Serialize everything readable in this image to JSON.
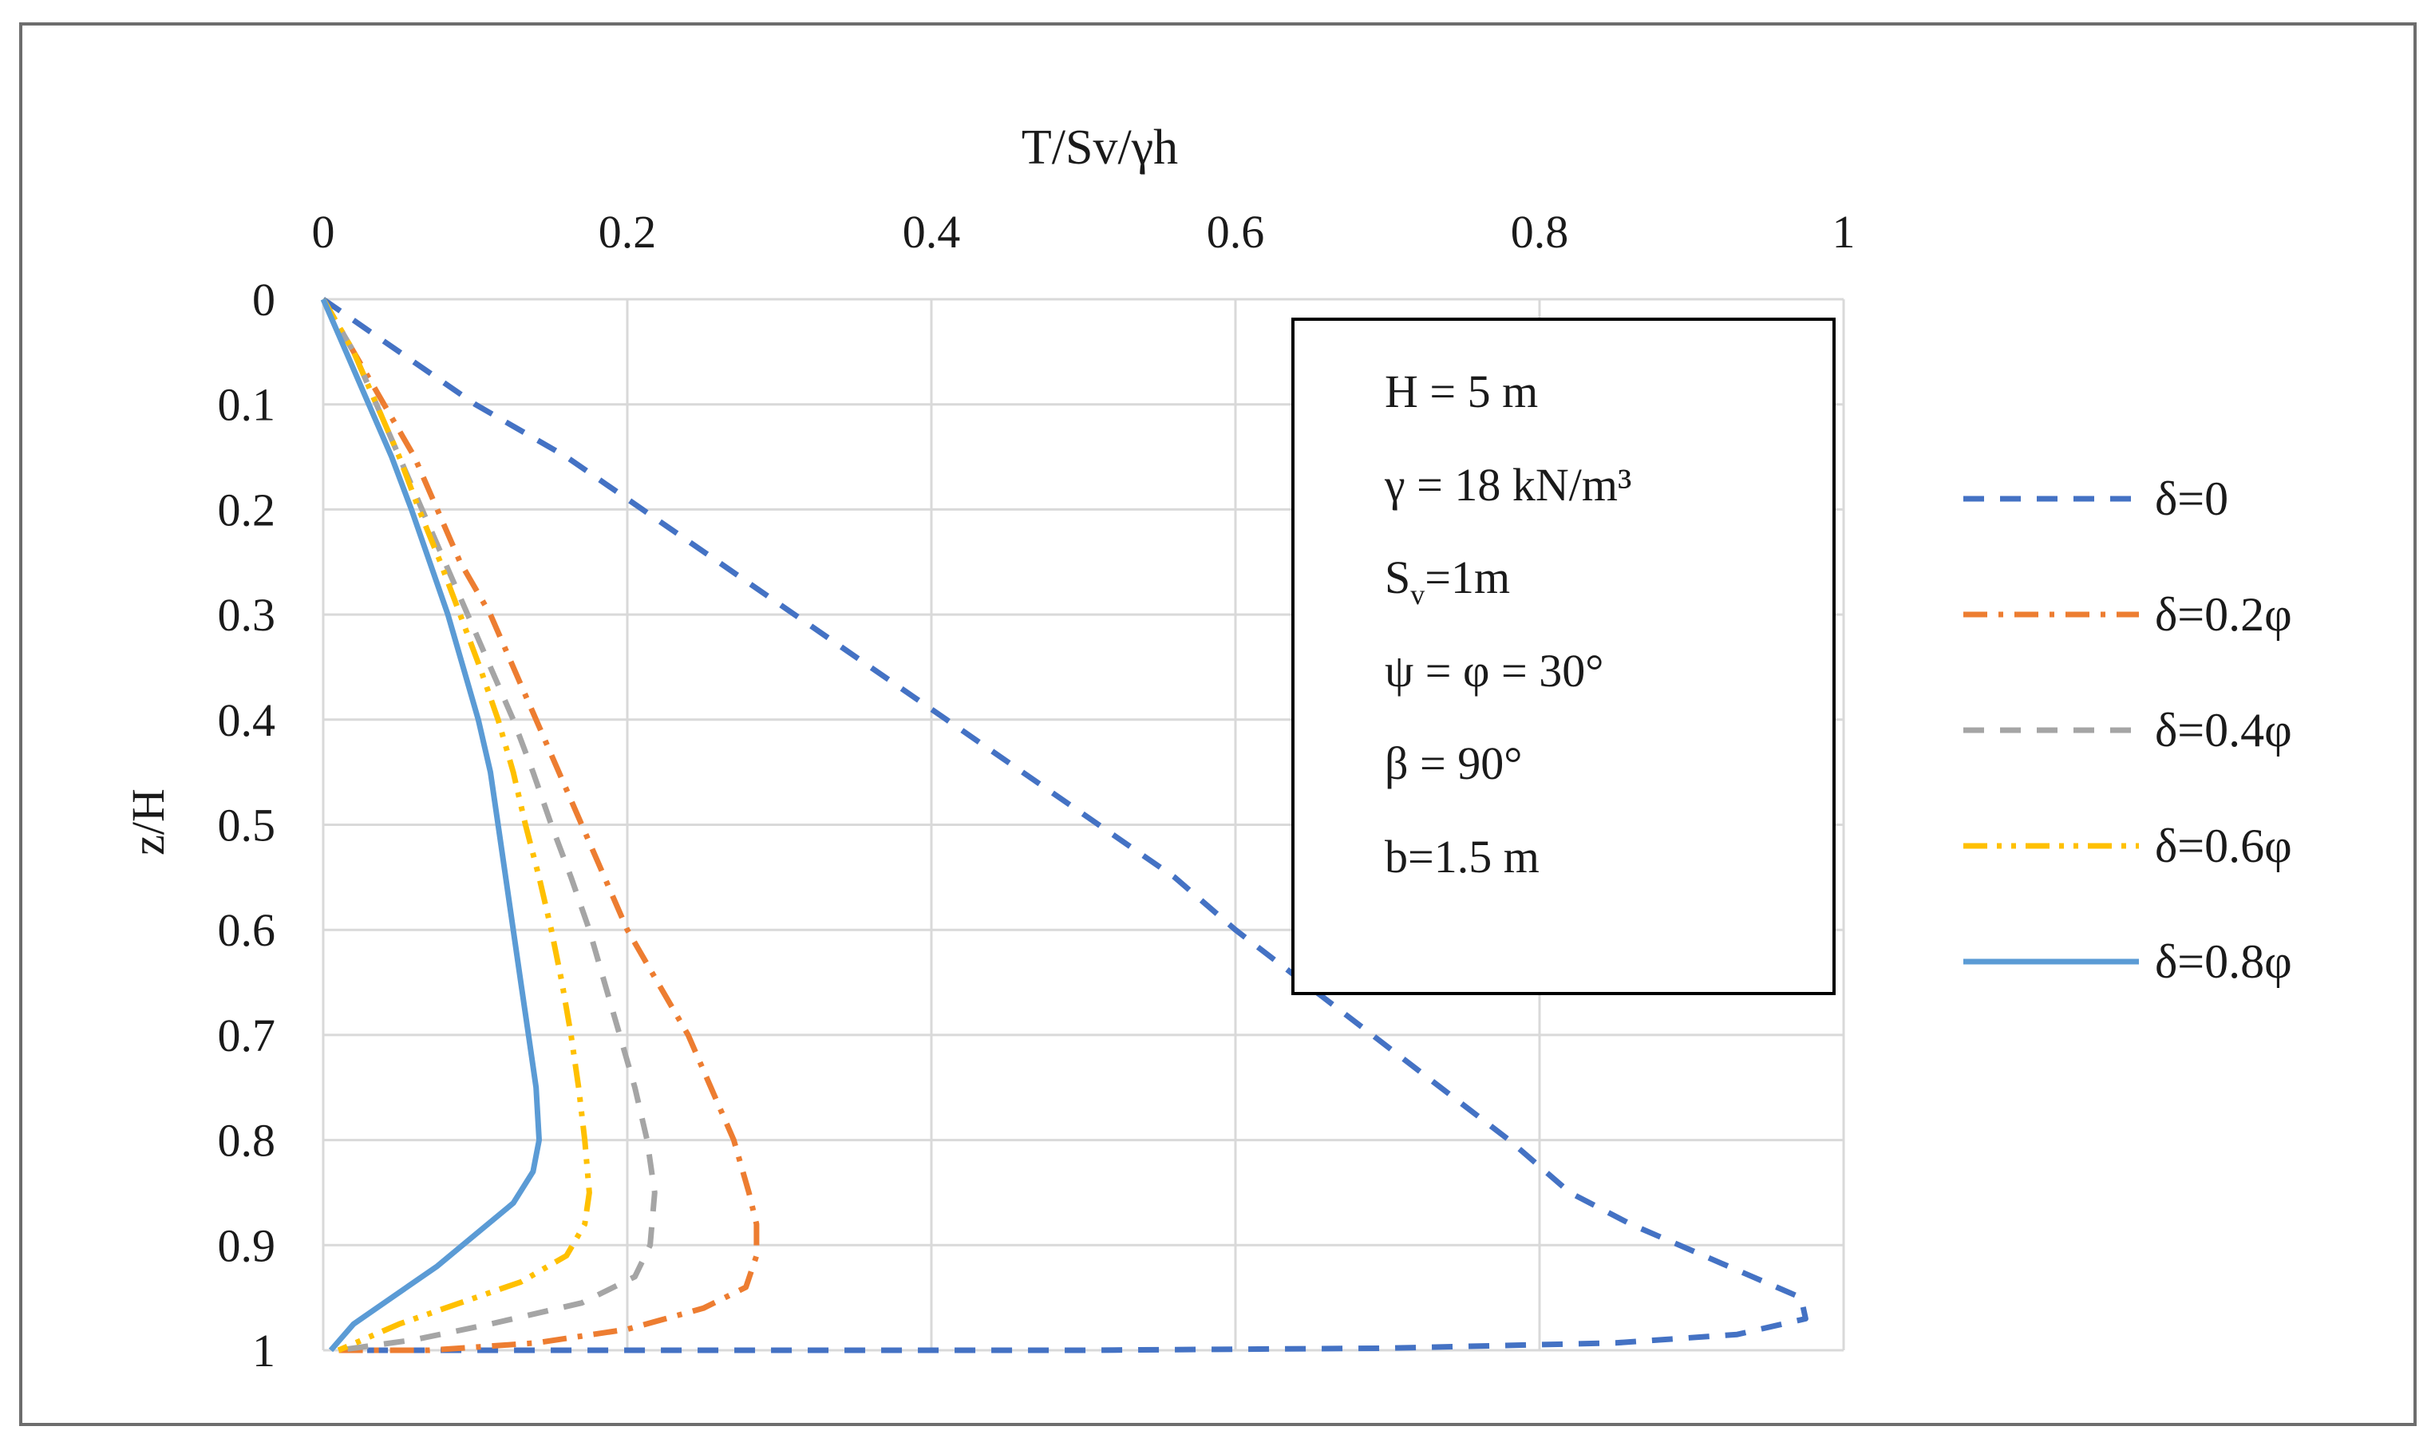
{
  "chart_data": {
    "type": "line",
    "title": "",
    "xlabel": "T/Sv/γh",
    "ylabel": "z/H",
    "xlim": [
      0,
      1
    ],
    "ylim": [
      0,
      1
    ],
    "x_axis_position": "top",
    "y_axis_inverted": true,
    "grid": true,
    "x_ticks": [
      "0",
      "0.2",
      "0.4",
      "0.6",
      "0.8",
      "1"
    ],
    "y_ticks": [
      "0",
      "0.1",
      "0.2",
      "0.3",
      "0.4",
      "0.5",
      "0.6",
      "0.7",
      "0.8",
      "0.9",
      "1"
    ],
    "legend_position": "right",
    "annotation_box": {
      "line1": "H = 5 m",
      "line2": "γ = 18 kN/m³",
      "line3_main": "S",
      "line3_sub": "v",
      "line3_rest": "=1m",
      "line4": "ψ = φ  = 30°",
      "line5": "β = 90°",
      "line6": "b=1.5 m"
    },
    "series": [
      {
        "name": "δ=0",
        "color": "#4472C4",
        "dash": "dash",
        "points": [
          [
            0,
            0
          ],
          [
            0.05,
            0.05
          ],
          [
            0.1,
            0.1
          ],
          [
            0.16,
            0.15
          ],
          [
            0.21,
            0.2
          ],
          [
            0.26,
            0.25
          ],
          [
            0.31,
            0.3
          ],
          [
            0.36,
            0.35
          ],
          [
            0.41,
            0.4
          ],
          [
            0.46,
            0.45
          ],
          [
            0.51,
            0.5
          ],
          [
            0.56,
            0.55
          ],
          [
            0.6,
            0.6
          ],
          [
            0.645,
            0.65
          ],
          [
            0.69,
            0.7
          ],
          [
            0.735,
            0.75
          ],
          [
            0.78,
            0.8
          ],
          [
            0.82,
            0.85
          ],
          [
            0.86,
            0.88
          ],
          [
            0.94,
            0.93
          ],
          [
            0.972,
            0.95
          ],
          [
            0.975,
            0.97
          ],
          [
            0.93,
            0.985
          ],
          [
            0.85,
            0.993
          ],
          [
            0.7,
            0.998
          ],
          [
            0.5,
            1.0
          ],
          [
            0.2,
            1.0
          ],
          [
            0.02,
            1.0
          ]
        ]
      },
      {
        "name": "δ=0.2φ",
        "color": "#ED7D31",
        "dash": "dashdot",
        "points": [
          [
            0,
            0
          ],
          [
            0.02,
            0.05
          ],
          [
            0.04,
            0.1
          ],
          [
            0.06,
            0.15
          ],
          [
            0.075,
            0.2
          ],
          [
            0.09,
            0.25
          ],
          [
            0.11,
            0.3
          ],
          [
            0.125,
            0.35
          ],
          [
            0.14,
            0.4
          ],
          [
            0.155,
            0.45
          ],
          [
            0.17,
            0.5
          ],
          [
            0.185,
            0.55
          ],
          [
            0.2,
            0.6
          ],
          [
            0.22,
            0.65
          ],
          [
            0.24,
            0.7
          ],
          [
            0.255,
            0.75
          ],
          [
            0.27,
            0.8
          ],
          [
            0.28,
            0.85
          ],
          [
            0.285,
            0.88
          ],
          [
            0.285,
            0.91
          ],
          [
            0.278,
            0.94
          ],
          [
            0.25,
            0.96
          ],
          [
            0.2,
            0.98
          ],
          [
            0.14,
            0.993
          ],
          [
            0.07,
            1.0
          ],
          [
            0.01,
            1.0
          ]
        ]
      },
      {
        "name": "δ=0.4φ",
        "color": "#A5A5A5",
        "dash": "dash",
        "points": [
          [
            0,
            0
          ],
          [
            0.02,
            0.05
          ],
          [
            0.035,
            0.1
          ],
          [
            0.05,
            0.15
          ],
          [
            0.065,
            0.2
          ],
          [
            0.08,
            0.25
          ],
          [
            0.095,
            0.3
          ],
          [
            0.11,
            0.35
          ],
          [
            0.125,
            0.4
          ],
          [
            0.138,
            0.45
          ],
          [
            0.15,
            0.5
          ],
          [
            0.163,
            0.55
          ],
          [
            0.175,
            0.6
          ],
          [
            0.185,
            0.65
          ],
          [
            0.195,
            0.7
          ],
          [
            0.205,
            0.75
          ],
          [
            0.213,
            0.8
          ],
          [
            0.218,
            0.85
          ],
          [
            0.215,
            0.9
          ],
          [
            0.205,
            0.93
          ],
          [
            0.17,
            0.955
          ],
          [
            0.11,
            0.975
          ],
          [
            0.06,
            0.99
          ],
          [
            0.01,
            1.0
          ]
        ]
      },
      {
        "name": "δ=0.6φ",
        "color": "#FFC000",
        "dash": "dashdotdot",
        "points": [
          [
            0,
            0
          ],
          [
            0.02,
            0.05
          ],
          [
            0.035,
            0.1
          ],
          [
            0.05,
            0.15
          ],
          [
            0.063,
            0.2
          ],
          [
            0.077,
            0.25
          ],
          [
            0.09,
            0.3
          ],
          [
            0.103,
            0.35
          ],
          [
            0.115,
            0.4
          ],
          [
            0.125,
            0.45
          ],
          [
            0.133,
            0.5
          ],
          [
            0.142,
            0.55
          ],
          [
            0.15,
            0.6
          ],
          [
            0.157,
            0.65
          ],
          [
            0.163,
            0.7
          ],
          [
            0.168,
            0.75
          ],
          [
            0.172,
            0.8
          ],
          [
            0.175,
            0.85
          ],
          [
            0.172,
            0.88
          ],
          [
            0.16,
            0.91
          ],
          [
            0.13,
            0.935
          ],
          [
            0.09,
            0.955
          ],
          [
            0.05,
            0.975
          ],
          [
            0.01,
            1.0
          ]
        ]
      },
      {
        "name": "δ=0.8φ",
        "color": "#5B9BD5",
        "dash": "solid",
        "points": [
          [
            0,
            0
          ],
          [
            0.015,
            0.05
          ],
          [
            0.03,
            0.1
          ],
          [
            0.045,
            0.15
          ],
          [
            0.058,
            0.2
          ],
          [
            0.07,
            0.25
          ],
          [
            0.082,
            0.3
          ],
          [
            0.092,
            0.35
          ],
          [
            0.102,
            0.4
          ],
          [
            0.11,
            0.45
          ],
          [
            0.115,
            0.5
          ],
          [
            0.12,
            0.55
          ],
          [
            0.125,
            0.6
          ],
          [
            0.13,
            0.65
          ],
          [
            0.135,
            0.7
          ],
          [
            0.14,
            0.75
          ],
          [
            0.142,
            0.8
          ],
          [
            0.138,
            0.83
          ],
          [
            0.125,
            0.86
          ],
          [
            0.1,
            0.89
          ],
          [
            0.075,
            0.92
          ],
          [
            0.045,
            0.95
          ],
          [
            0.02,
            0.975
          ],
          [
            0.005,
            1.0
          ]
        ]
      }
    ]
  }
}
